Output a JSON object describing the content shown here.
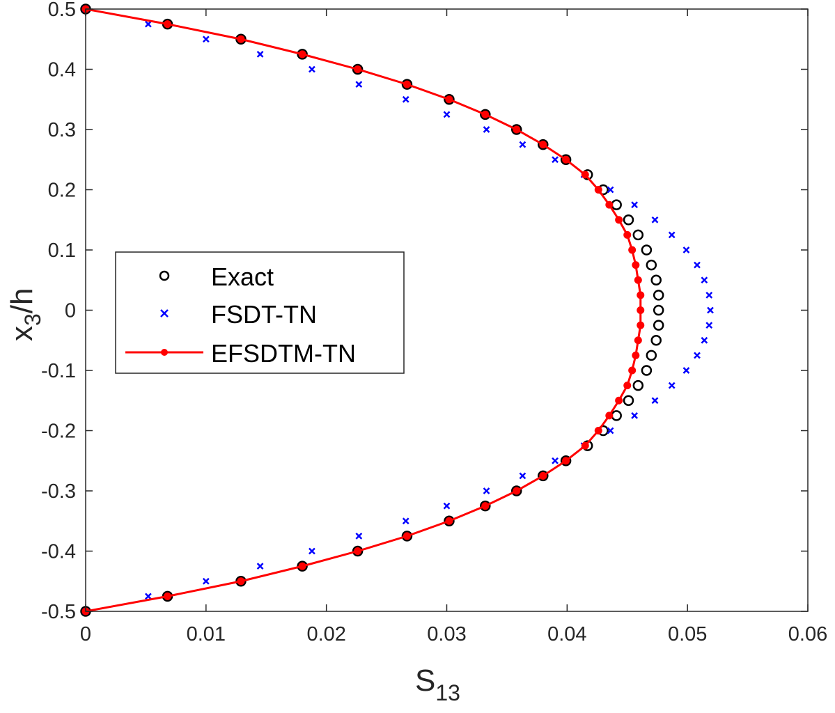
{
  "chart_data": {
    "type": "scatter",
    "title": "",
    "xlabel": "S",
    "xlabel_sub": "13",
    "ylabel": "x",
    "ylabel_sub": "3",
    "ylabel_suffix": "/h",
    "xlim": [
      0,
      0.06
    ],
    "ylim": [
      -0.5,
      0.5
    ],
    "xticks": [
      0,
      0.01,
      0.02,
      0.03,
      0.04,
      0.05,
      0.06
    ],
    "xtick_labels": [
      "0",
      "0.01",
      "0.02",
      "0.03",
      "0.04",
      "0.05",
      "0.06"
    ],
    "yticks": [
      0.5,
      0.4,
      0.3,
      0.2,
      0.1,
      0,
      -0.1,
      -0.2,
      -0.3,
      -0.4,
      -0.5
    ],
    "ytick_labels": [
      "0.5",
      "0.4",
      "0.3",
      "0.2",
      "0.1",
      "0",
      "-0.1",
      "-0.2",
      "-0.3",
      "-0.4",
      "-0.5"
    ],
    "grid": false,
    "legend_position": "center-left",
    "y": [
      0.5,
      0.475,
      0.45,
      0.425,
      0.4,
      0.375,
      0.35,
      0.325,
      0.3,
      0.275,
      0.25,
      0.225,
      0.2,
      0.175,
      0.15,
      0.125,
      0.1,
      0.075,
      0.05,
      0.025,
      0,
      -0.025,
      -0.05,
      -0.075,
      -0.1,
      -0.125,
      -0.15,
      -0.175,
      -0.2,
      -0.225,
      -0.25,
      -0.275,
      -0.3,
      -0.325,
      -0.35,
      -0.375,
      -0.4,
      -0.425,
      -0.45,
      -0.475,
      -0.5
    ],
    "series": [
      {
        "name": "Exact",
        "marker": "circle",
        "color": "#000000",
        "x": [
          0,
          0.0068,
          0.0129,
          0.018,
          0.0226,
          0.0267,
          0.0302,
          0.0332,
          0.0358,
          0.038,
          0.0399,
          0.0417,
          0.043,
          0.0441,
          0.0451,
          0.0459,
          0.0466,
          0.047,
          0.0474,
          0.0476,
          0.0476,
          0.0476,
          0.0474,
          0.047,
          0.0466,
          0.0459,
          0.0451,
          0.0441,
          0.043,
          0.0417,
          0.0399,
          0.038,
          0.0358,
          0.0332,
          0.0302,
          0.0267,
          0.0226,
          0.018,
          0.0129,
          0.0068,
          0
        ]
      },
      {
        "name": "FSDT-TN",
        "marker": "x",
        "color": "#0000ff",
        "x": [
          0,
          0.0052,
          0.01,
          0.0145,
          0.0188,
          0.0227,
          0.0266,
          0.03,
          0.0333,
          0.0363,
          0.039,
          0.0414,
          0.0436,
          0.0456,
          0.0473,
          0.0487,
          0.0499,
          0.0508,
          0.0514,
          0.0518,
          0.0519,
          0.0518,
          0.0514,
          0.0508,
          0.0499,
          0.0487,
          0.0473,
          0.0456,
          0.0436,
          0.0414,
          0.039,
          0.0363,
          0.0333,
          0.03,
          0.0266,
          0.0227,
          0.0188,
          0.0145,
          0.01,
          0.0052,
          0
        ]
      },
      {
        "name": "EFSDTM-TN",
        "marker": "dot-line",
        "color": "#ff0000",
        "x": [
          0,
          0.0068,
          0.0129,
          0.018,
          0.0226,
          0.0267,
          0.0302,
          0.0332,
          0.0358,
          0.038,
          0.0399,
          0.0415,
          0.0426,
          0.0435,
          0.0443,
          0.045,
          0.0454,
          0.0457,
          0.0459,
          0.0461,
          0.0461,
          0.0461,
          0.0459,
          0.0457,
          0.0454,
          0.045,
          0.0443,
          0.0435,
          0.0426,
          0.0415,
          0.0399,
          0.038,
          0.0358,
          0.0332,
          0.0302,
          0.0267,
          0.0226,
          0.018,
          0.0129,
          0.0068,
          0
        ]
      }
    ]
  }
}
